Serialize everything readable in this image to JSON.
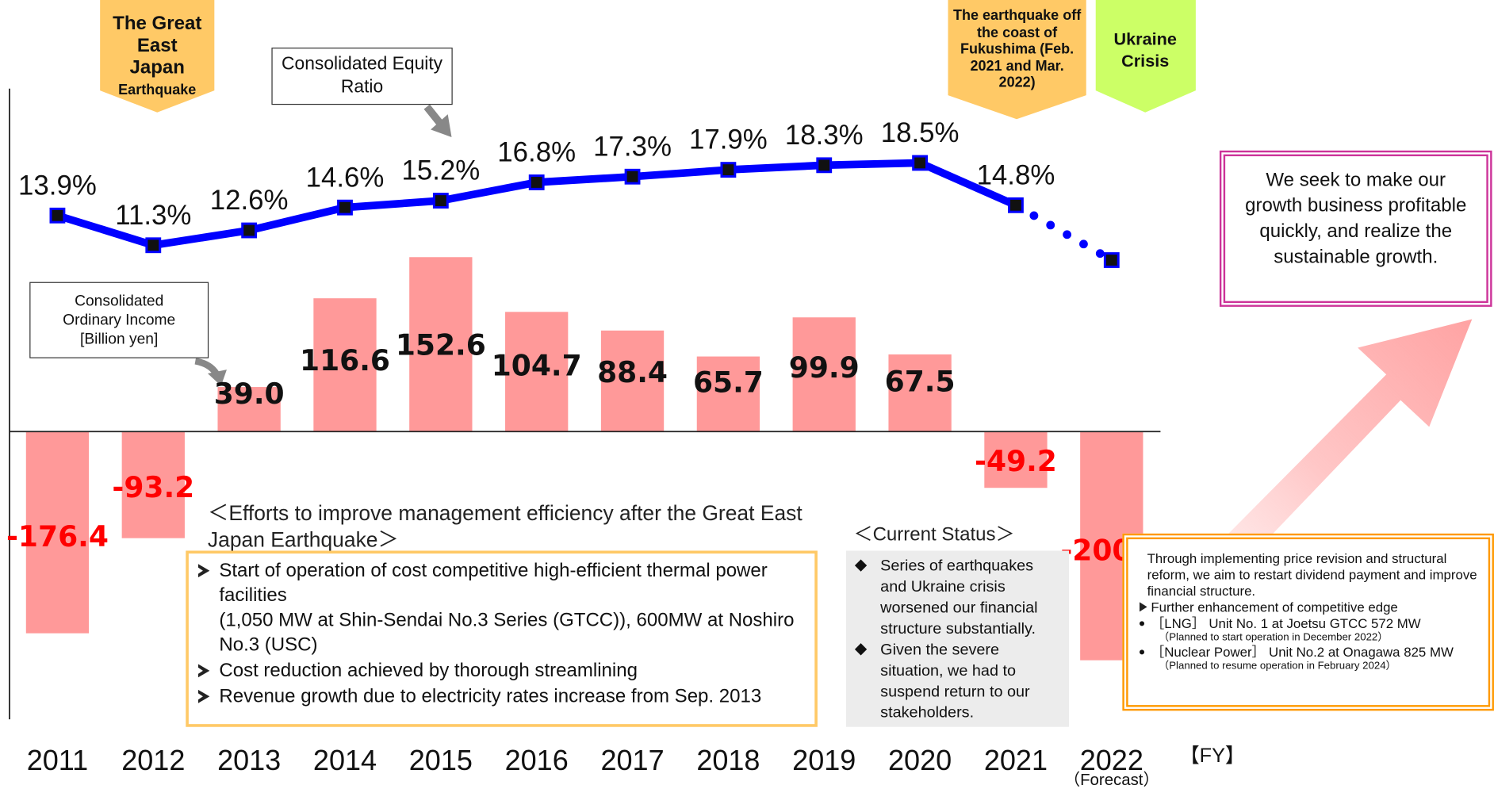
{
  "chart_data": {
    "type": "bar",
    "categories": [
      "2011",
      "2012",
      "2013",
      "2014",
      "2015",
      "2016",
      "2017",
      "2018",
      "2019",
      "2020",
      "2021",
      "2022"
    ],
    "category_notes": [
      null,
      null,
      null,
      null,
      null,
      null,
      null,
      null,
      null,
      null,
      null,
      "（Forecast）"
    ],
    "x_label": "【FY】",
    "ylim": [
      -250,
      300
    ],
    "y2lim": [
      -30,
      25
    ],
    "series": [
      {
        "name": "Consolidated Ordinary Income [Billion yen]",
        "type": "bar",
        "color": "#ff9999",
        "positive_label_color": "#111111",
        "negative_label_color": "#ff0000",
        "values": [
          -176.4,
          -93.2,
          39,
          116.6,
          152.6,
          104.7,
          88.4,
          65.7,
          99.9,
          67.5,
          -49.2,
          -200
        ],
        "value_labels": [
          "-176.4",
          "-93.2",
          "39.0",
          "116.6",
          "152.6",
          "104.7",
          "88.4",
          "65.7",
          "99.9",
          "67.5",
          "-49.2",
          "-200.0"
        ]
      },
      {
        "name": "Consolidated Equity Ratio",
        "type": "line",
        "axis": "y2",
        "color": "#0000ff",
        "marker_color": "#111111",
        "values": [
          13.9,
          11.3,
          12.6,
          14.6,
          15.2,
          16.8,
          17.3,
          17.9,
          18.3,
          18.5,
          14.8,
          10.0
        ],
        "value_labels": [
          "13.9%",
          "11.3%",
          "12.6%",
          "14.6%",
          "15.2%",
          "16.8%",
          "17.3%",
          "17.9%",
          "18.3%",
          "18.5%",
          "14.8%",
          null
        ]
      }
    ]
  },
  "events": [
    {
      "title": "The Great East Japan",
      "subtitle": "Earthquake"
    },
    {
      "title": "The earthquake off the coast of Fukushima (Feb. 2021 and Mar. 2022)"
    },
    {
      "title": "Ukraine Crisis"
    }
  ],
  "efforts": {
    "heading": "＜Efforts to improve management efficiency after the Great East Japan Earthquake＞",
    "items": [
      {
        "text": "Start of operation of cost competitive high-efficient thermal power facilities",
        "detail": "(1,050 MW at Shin-Sendai No.3 Series (GTCC)), 600MW at Noshiro No.3 (USC)"
      },
      {
        "text": "Cost reduction achieved by thorough streamlining"
      },
      {
        "text": "Revenue growth due to electricity rates increase from Sep. 2013"
      }
    ]
  },
  "current_status": {
    "heading": "＜Current Status＞",
    "items": [
      "Series of earthquakes and Ukraine crisis worsened our financial structure substantially.",
      "Given the severe situation, we had to suspend return to our stakeholders."
    ]
  },
  "outlook": {
    "intro": "Through implementing price revision and structural reform, we aim to restart dividend payment and improve financial structure.",
    "heading": "Further enhancement of competitive edge",
    "items": [
      {
        "text": "［LNG］ Unit No. 1 at Joetsu GTCC 572 MW",
        "note": "（Planned to start operation in December 2022）"
      },
      {
        "text": "［Nuclear Power］ Unit No.2 at Onagawa 825 MW",
        "note": "（Planned to resume operation in February 2024）"
      }
    ]
  },
  "goal": "We seek to make our growth business profitable quickly, and realize the sustainable growth."
}
